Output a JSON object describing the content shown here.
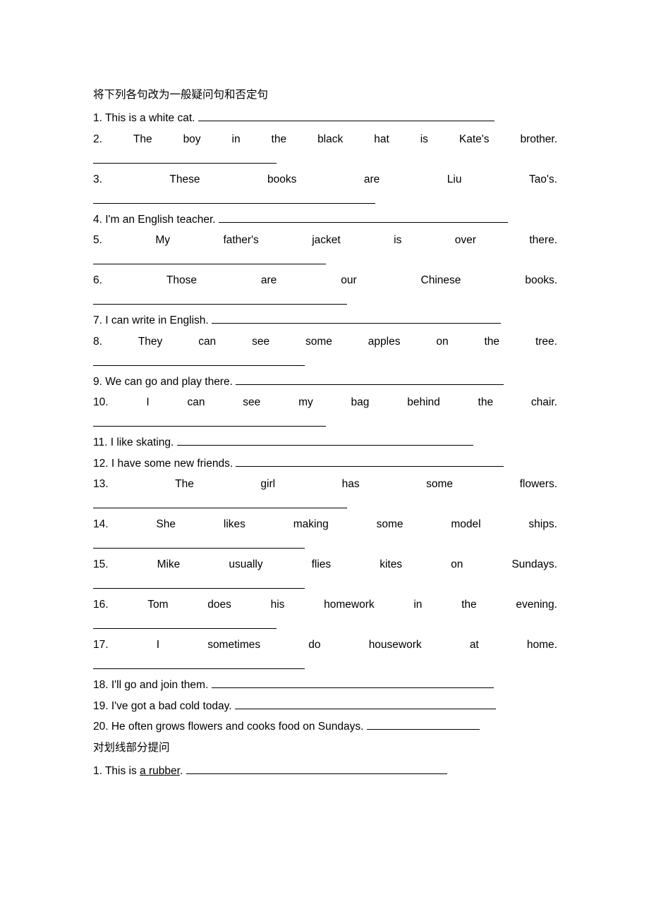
{
  "heading1": "将下列各句改为一般疑问句和否定句",
  "q1_pre": "1. This is a white cat. ",
  "q2_tokens": [
    "2.",
    "The",
    "boy",
    "in",
    "the",
    "black",
    "hat",
    "is",
    "Kate's",
    "brother."
  ],
  "q3_tokens": [
    "3.",
    "These",
    "books",
    "are",
    "Liu",
    "Tao's."
  ],
  "q4_pre": "4. I'm an English teacher. ",
  "q5_tokens": [
    "5.",
    "My",
    "father's",
    "jacket",
    "is",
    "over",
    "there."
  ],
  "q6_tokens": [
    "6.",
    "Those",
    "are",
    "our",
    "Chinese",
    "books."
  ],
  "q7_pre": "7. I can write in English. ",
  "q8_tokens": [
    "8.",
    "They",
    "can",
    "see",
    "some",
    "apples",
    "on",
    "the",
    "tree."
  ],
  "q9_pre": "9. We can go and play there. ",
  "q10_tokens": [
    "10.",
    "I",
    "can",
    "see",
    "my",
    "bag",
    "behind",
    "the",
    "chair."
  ],
  "q11_pre": "11. I like skating. ",
  "q12_pre": "12. I have some new friends. ",
  "q13_tokens": [
    "13.",
    "The",
    "girl",
    "has",
    "some",
    "flowers."
  ],
  "q14_tokens": [
    "14.",
    "She",
    "likes",
    "making",
    "some",
    "model",
    "ships."
  ],
  "q15_tokens": [
    "15.",
    "Mike",
    "usually",
    "flies",
    "kites",
    "on",
    "Sundays."
  ],
  "q16_tokens": [
    "16.",
    "Tom",
    "does",
    "his",
    "homework",
    "in",
    "the",
    "evening."
  ],
  "q17_tokens": [
    "17.",
    "I",
    "sometimes",
    "do",
    "housework",
    "at",
    "home."
  ],
  "q18_pre": "18. I'll go and join them. ",
  "q19_pre": "19. I've got a bad cold today. ",
  "q20_pre": "20. He often grows flowers and cooks food on Sundays. ",
  "heading2": "对划线部分提问",
  "b1_pre": "1. This is ",
  "b1_underlined": "a rubber",
  "b1_post": ". "
}
